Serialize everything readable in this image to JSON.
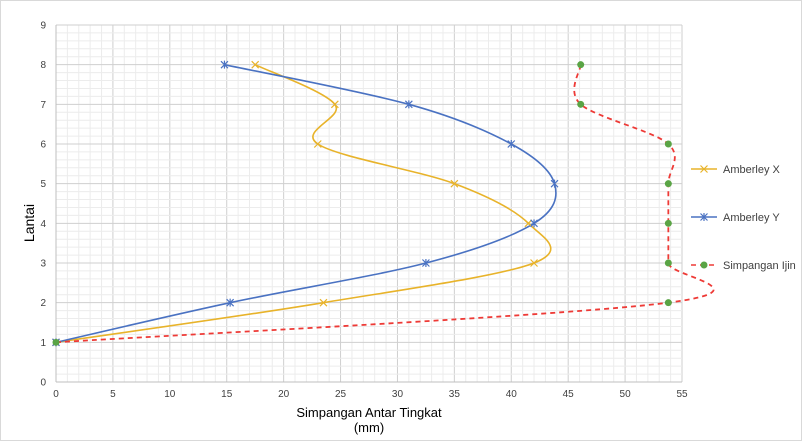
{
  "chart_data": {
    "type": "line",
    "title": "",
    "xlabel_line1": "Simpangan Antar Tingkat",
    "xlabel_line2": "(mm)",
    "ylabel": "Lantai",
    "xlim": [
      0,
      55
    ],
    "ylim": [
      0,
      9
    ],
    "x_ticks": [
      "0",
      "5",
      "10",
      "15",
      "20",
      "25",
      "30",
      "35",
      "40",
      "45",
      "50",
      "55"
    ],
    "y_ticks": [
      "0",
      "1",
      "2",
      "3",
      "4",
      "5",
      "6",
      "7",
      "8",
      "9"
    ],
    "grid": true,
    "legend_position": "right",
    "series": [
      {
        "name": "Amberley X",
        "color": "#e8b32a",
        "line_style": "solid",
        "marker": "x",
        "points": [
          [
            0,
            1
          ],
          [
            23.5,
            2
          ],
          [
            42,
            3
          ],
          [
            41.5,
            4
          ],
          [
            35,
            5
          ],
          [
            23,
            6
          ],
          [
            24.5,
            7
          ],
          [
            17.5,
            8
          ]
        ]
      },
      {
        "name": "Amberley Y",
        "color": "#4a72c2",
        "line_style": "solid",
        "marker": "star",
        "points": [
          [
            0,
            1
          ],
          [
            15.3,
            2
          ],
          [
            32.5,
            3
          ],
          [
            42,
            4
          ],
          [
            43.8,
            5
          ],
          [
            40,
            6
          ],
          [
            31,
            7
          ],
          [
            14.8,
            8
          ]
        ]
      },
      {
        "name": "Simpangan Ijin",
        "color": "#ee3a36",
        "marker_color": "#5aa445",
        "line_style": "dashed",
        "marker": "circle",
        "points": [
          [
            0,
            1
          ],
          [
            53.8,
            2
          ],
          [
            53.8,
            3
          ],
          [
            53.8,
            4
          ],
          [
            53.8,
            5
          ],
          [
            53.8,
            6
          ],
          [
            46.1,
            7
          ],
          [
            46.1,
            8
          ]
        ]
      }
    ]
  }
}
